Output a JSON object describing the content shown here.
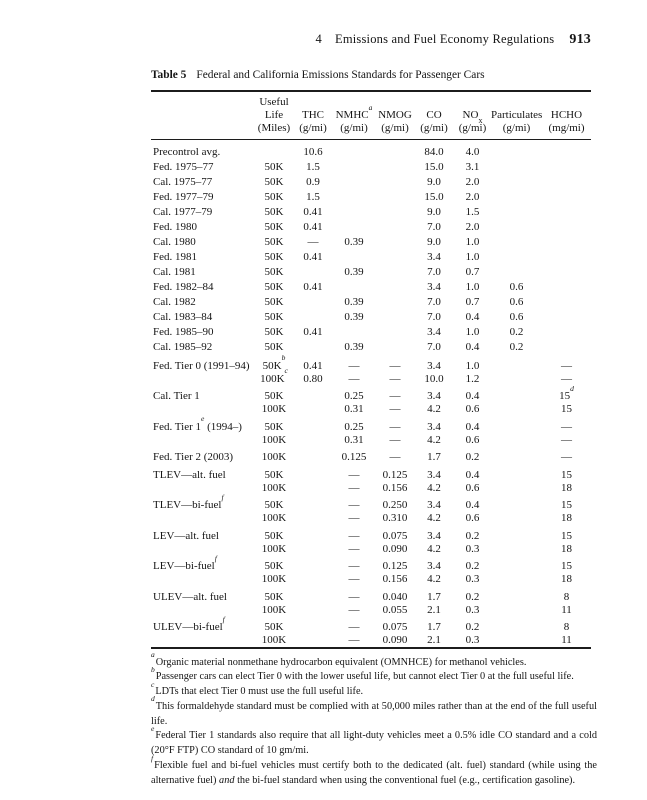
{
  "colors": {
    "background": "#ffffff",
    "text": "#151515",
    "rule": "#1c1c1c"
  },
  "header": {
    "chapter": "4",
    "title": "Emissions and Fuel Economy Regulations",
    "page_number": "913"
  },
  "caption": {
    "label": "Table 5",
    "text": "Federal and California Emissions Standards for Passenger Cars"
  },
  "table": {
    "columns": [
      {
        "lines": []
      },
      {
        "lines": [
          [
            {
              "t": "Useful"
            }
          ],
          [
            {
              "t": "Life"
            }
          ],
          [
            {
              "t": "(Miles)"
            }
          ]
        ]
      },
      {
        "lines": [
          [
            {
              "t": "THC"
            }
          ],
          [
            {
              "t": "(g/mi)"
            }
          ]
        ]
      },
      {
        "lines": [
          [
            {
              "t": "NMHC"
            },
            {
              "s": "a"
            }
          ],
          [
            {
              "t": "(g/mi)"
            }
          ]
        ]
      },
      {
        "lines": [
          [
            {
              "t": "NMOG"
            }
          ],
          [
            {
              "t": "(g/mi)"
            }
          ]
        ]
      },
      {
        "lines": [
          [
            {
              "t": "CO"
            }
          ],
          [
            {
              "t": "(g/mi)"
            }
          ]
        ]
      },
      {
        "lines": [
          [
            {
              "t": "NO"
            },
            {
              "sub": "x"
            }
          ],
          [
            {
              "t": "(g/mi)"
            }
          ]
        ]
      },
      {
        "lines": [
          [
            {
              "t": "Particulates"
            }
          ],
          [
            {
              "t": "(g/mi)"
            }
          ]
        ]
      },
      {
        "lines": [
          [
            {
              "t": "HCHO"
            }
          ],
          [
            {
              "t": "(mg/mi)"
            }
          ]
        ]
      }
    ],
    "column_keys": [
      "useful-life",
      "thc",
      "nmhc",
      "nmog",
      "co",
      "nox",
      "particulates",
      "hcho"
    ],
    "groups": [
      {
        "label": "Precontrol avg.",
        "lines": [
          [
            "",
            "10.6",
            "",
            "",
            "84.0",
            "4.0",
            "",
            ""
          ]
        ]
      },
      {
        "label": "Fed. 1975–77",
        "lines": [
          [
            "50K",
            "1.5",
            "",
            "",
            "15.0",
            "3.1",
            "",
            ""
          ]
        ]
      },
      {
        "label": "Cal. 1975–77",
        "lines": [
          [
            "50K",
            "0.9",
            "",
            "",
            "9.0",
            "2.0",
            "",
            ""
          ]
        ]
      },
      {
        "label": "Fed. 1977–79",
        "lines": [
          [
            "50K",
            "1.5",
            "",
            "",
            "15.0",
            "2.0",
            "",
            ""
          ]
        ]
      },
      {
        "label": "Cal. 1977–79",
        "lines": [
          [
            "50K",
            "0.41",
            "",
            "",
            "9.0",
            "1.5",
            "",
            ""
          ]
        ]
      },
      {
        "label": "Fed. 1980",
        "lines": [
          [
            "50K",
            "0.41",
            "",
            "",
            "7.0",
            "2.0",
            "",
            ""
          ]
        ]
      },
      {
        "label": "Cal. 1980",
        "lines": [
          [
            "50K",
            "—",
            "0.39",
            "",
            "9.0",
            "1.0",
            "",
            ""
          ]
        ]
      },
      {
        "label": "Fed. 1981",
        "lines": [
          [
            "50K",
            "0.41",
            "",
            "",
            "3.4",
            "1.0",
            "",
            ""
          ]
        ]
      },
      {
        "label": "Cal. 1981",
        "lines": [
          [
            "50K",
            "",
            "0.39",
            "",
            "7.0",
            "0.7",
            "",
            ""
          ]
        ]
      },
      {
        "label": "Fed. 1982–84",
        "lines": [
          [
            "50K",
            "0.41",
            "",
            "",
            "3.4",
            "1.0",
            "0.6",
            ""
          ]
        ]
      },
      {
        "label": "Cal. 1982",
        "lines": [
          [
            "50K",
            "",
            "0.39",
            "",
            "7.0",
            "0.7",
            "0.6",
            ""
          ]
        ]
      },
      {
        "label": "Cal. 1983–84",
        "lines": [
          [
            "50K",
            "",
            "0.39",
            "",
            "7.0",
            "0.4",
            "0.6",
            ""
          ]
        ]
      },
      {
        "label": "Fed. 1985–90",
        "lines": [
          [
            "50K",
            "0.41",
            "",
            "",
            "3.4",
            "1.0",
            "0.2",
            ""
          ]
        ]
      },
      {
        "label": "Cal. 1985–92",
        "lines": [
          [
            "50K",
            "",
            "0.39",
            "",
            "7.0",
            "0.4",
            "0.2",
            ""
          ]
        ]
      },
      {
        "label": "Fed. Tier 0 (1991–94)",
        "tight": true,
        "lines": [
          [
            [
              {
                "t": "50K"
              },
              {
                "s": "b"
              }
            ],
            "0.41",
            "—",
            "—",
            "3.4",
            "1.0",
            "",
            "—"
          ],
          [
            [
              {
                "t": "100K"
              },
              {
                "s": "c"
              }
            ],
            "0.80",
            "—",
            "—",
            "10.0",
            "1.2",
            "",
            "—"
          ]
        ]
      },
      {
        "label": "Cal. Tier 1",
        "tight": true,
        "lines": [
          [
            "50K",
            "",
            "0.25",
            "—",
            "3.4",
            "0.4",
            "",
            [
              {
                "t": "15"
              },
              {
                "s": "d"
              }
            ]
          ],
          [
            "100K",
            "",
            "0.31",
            "—",
            "4.2",
            "0.6",
            "",
            "15"
          ]
        ]
      },
      {
        "label": [
          {
            "t": "Fed. Tier 1"
          },
          {
            "s": "e"
          },
          {
            "t": " (1994–)"
          }
        ],
        "tight": true,
        "lines": [
          [
            "50K",
            "",
            "0.25",
            "—",
            "3.4",
            "0.4",
            "",
            "—"
          ],
          [
            "100K",
            "",
            "0.31",
            "—",
            "4.2",
            "0.6",
            "",
            "—"
          ]
        ]
      },
      {
        "label": "Fed. Tier 2 (2003)",
        "tight": true,
        "lines": [
          [
            "100K",
            "",
            "0.125",
            "—",
            "1.7",
            "0.2",
            "",
            "—"
          ]
        ]
      },
      {
        "label": "TLEV—alt. fuel",
        "tight": true,
        "lines": [
          [
            "50K",
            "",
            "—",
            "0.125",
            "3.4",
            "0.4",
            "",
            "15"
          ],
          [
            "100K",
            "",
            "—",
            "0.156",
            "4.2",
            "0.6",
            "",
            "18"
          ]
        ]
      },
      {
        "label": [
          {
            "t": "TLEV—bi-fuel"
          },
          {
            "s": "f"
          }
        ],
        "tight": true,
        "lines": [
          [
            "50K",
            "",
            "—",
            "0.250",
            "3.4",
            "0.4",
            "",
            "15"
          ],
          [
            "100K",
            "",
            "—",
            "0.310",
            "4.2",
            "0.6",
            "",
            "18"
          ]
        ]
      },
      {
        "label": "LEV—alt. fuel",
        "tight": true,
        "lines": [
          [
            "50K",
            "",
            "—",
            "0.075",
            "3.4",
            "0.2",
            "",
            "15"
          ],
          [
            "100K",
            "",
            "—",
            "0.090",
            "4.2",
            "0.3",
            "",
            "18"
          ]
        ]
      },
      {
        "label": [
          {
            "t": "LEV—bi-fuel"
          },
          {
            "s": "f"
          }
        ],
        "tight": true,
        "lines": [
          [
            "50K",
            "",
            "—",
            "0.125",
            "3.4",
            "0.2",
            "",
            "15"
          ],
          [
            "100K",
            "",
            "—",
            "0.156",
            "4.2",
            "0.3",
            "",
            "18"
          ]
        ]
      },
      {
        "label": "ULEV—alt. fuel",
        "tight": true,
        "lines": [
          [
            "50K",
            "",
            "—",
            "0.040",
            "1.7",
            "0.2",
            "",
            "8"
          ],
          [
            "100K",
            "",
            "—",
            "0.055",
            "2.1",
            "0.3",
            "",
            "11"
          ]
        ]
      },
      {
        "label": [
          {
            "t": "ULEV—bi-fuel"
          },
          {
            "s": "f"
          }
        ],
        "tight": true,
        "lines": [
          [
            "50K",
            "",
            "—",
            "0.075",
            "1.7",
            "0.2",
            "",
            "8"
          ],
          [
            "100K",
            "",
            "—",
            "0.090",
            "2.1",
            "0.3",
            "",
            "11"
          ]
        ]
      }
    ]
  },
  "footnotes": [
    {
      "mark": "a",
      "text": [
        {
          "t": "Organic material nonmethane hydrocarbon equivalent (OMNHCE) for methanol vehicles."
        }
      ]
    },
    {
      "mark": "b",
      "text": [
        {
          "t": "Passenger cars can elect Tier 0 with the lower useful life, but cannot elect Tier 0 at the full useful life."
        }
      ]
    },
    {
      "mark": "c",
      "text": [
        {
          "t": "LDTs that elect Tier 0 must use the full useful life."
        }
      ]
    },
    {
      "mark": "d",
      "text": [
        {
          "t": "This formaldehyde standard must be complied with at 50,000 miles rather than at the end of the full useful life."
        }
      ]
    },
    {
      "mark": "e",
      "text": [
        {
          "t": "Federal Tier 1 standards also require that all light-duty vehicles meet a 0.5% idle CO standard and a cold (20°F FTP) CO standard of 10 gm/mi."
        }
      ]
    },
    {
      "mark": "f",
      "text": [
        {
          "t": "Flexible fuel and bi-fuel vehicles must certify both to the dedicated (alt. fuel) standard (while using the alternative fuel) "
        },
        {
          "i": "and"
        },
        {
          "t": " the bi-fuel standard when using the conventional fuel (e.g., certification gasoline)."
        }
      ]
    }
  ]
}
